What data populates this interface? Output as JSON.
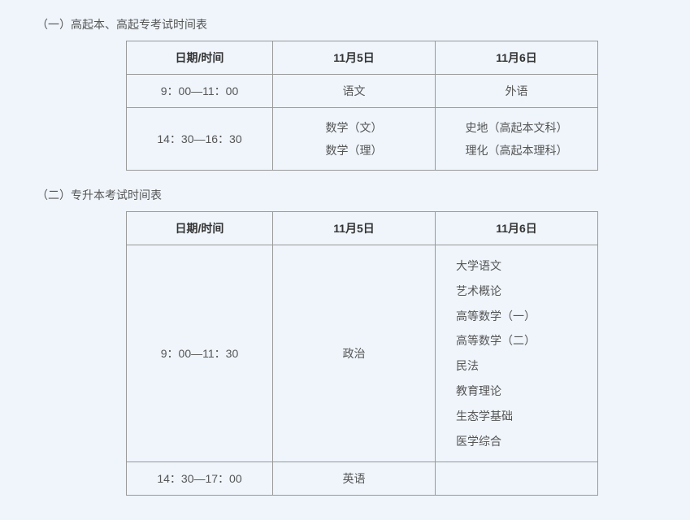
{
  "section1": {
    "title": "（一）高起本、高起专考试时间表",
    "headers": [
      "日期/时间",
      "11月5日",
      "11月6日"
    ],
    "rows": [
      {
        "time": "9：00—11：00",
        "day1": [
          "语文"
        ],
        "day2": [
          "外语"
        ]
      },
      {
        "time": "14：30—16：30",
        "day1": [
          "数学（文）",
          "数学（理）"
        ],
        "day2": [
          "史地（高起本文科）",
          "理化（高起本理科）"
        ]
      }
    ]
  },
  "section2": {
    "title": "（二）专升本考试时间表",
    "headers": [
      "日期/时间",
      "11月5日",
      "11月6日"
    ],
    "rows": [
      {
        "time": "9：00—11：30",
        "day1": [
          "政治"
        ],
        "day2": [
          "大学语文",
          "艺术概论",
          "高等数学（一）",
          "高等数学（二）",
          "民法",
          "教育理论",
          "生态学基础",
          "医学综合"
        ]
      },
      {
        "time": "14：30—17：00",
        "day1": [
          "英语"
        ],
        "day2": []
      }
    ]
  },
  "styling": {
    "background_color": "#eff5fb",
    "border_color": "#999999",
    "text_color": "#555555",
    "header_text_color": "#333333",
    "font_size": 14,
    "table_margin_left": 115,
    "col_time_width": 180,
    "col_day_width": 200
  }
}
